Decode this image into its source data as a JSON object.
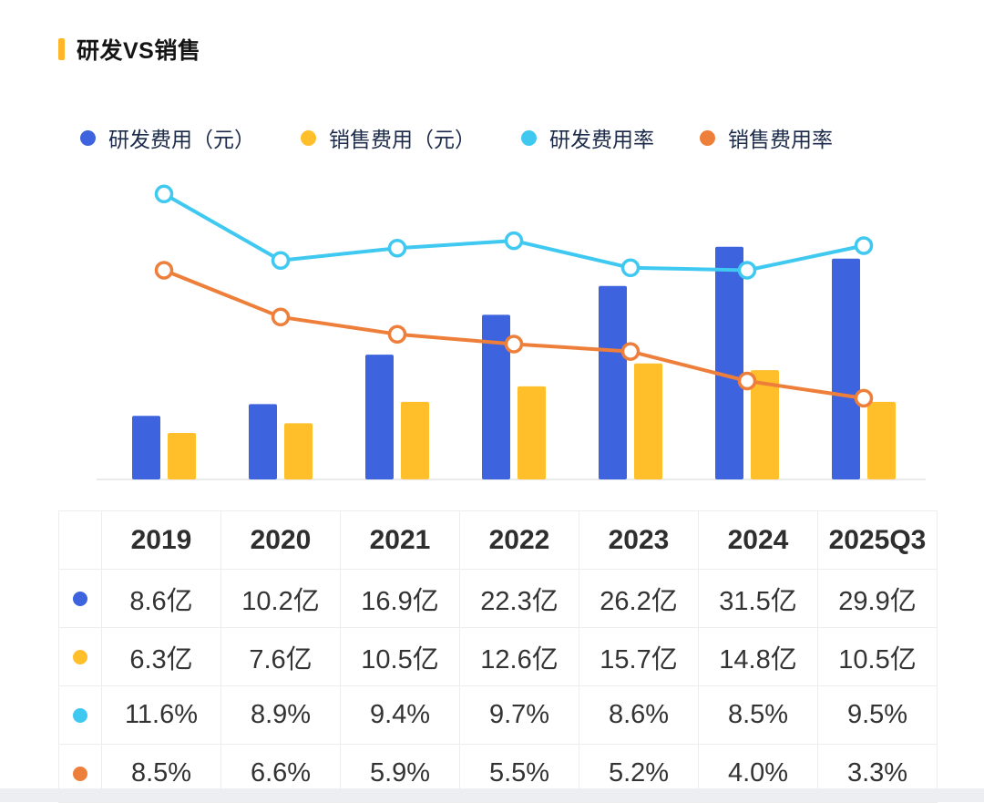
{
  "page": {
    "title": "研发VS销售",
    "accent_color": "#FFB629"
  },
  "legend": {
    "items": [
      {
        "id": "rd-expense",
        "label": "研发费用（元）",
        "color": "#3D63DE"
      },
      {
        "id": "sales-expense",
        "label": "销售费用（元）",
        "color": "#FFBF2B"
      },
      {
        "id": "rd-ratio",
        "label": "研发费用率",
        "color": "#3FC9F1"
      },
      {
        "id": "sales-ratio",
        "label": "销售费用率",
        "color": "#EE7F3B"
      }
    ]
  },
  "chart_data": {
    "type": "bar+line",
    "title": "研发VS销售",
    "categories": [
      "2019",
      "2020",
      "2021",
      "2022",
      "2023",
      "2024",
      "2025Q3"
    ],
    "bar_series": [
      {
        "id": "rd-expense",
        "name": "研发费用（元）",
        "unit": "亿",
        "color": "#3D63DE",
        "values": [
          8.6,
          10.2,
          16.9,
          22.3,
          26.2,
          31.5,
          29.9
        ]
      },
      {
        "id": "sales-expense",
        "name": "销售费用（元）",
        "unit": "亿",
        "color": "#FFBF2B",
        "values": [
          6.3,
          7.6,
          10.5,
          12.6,
          15.7,
          14.8,
          10.5
        ]
      }
    ],
    "line_series": [
      {
        "id": "sales-ratio",
        "name": "销售费用率",
        "unit": "%",
        "color": "#EE7F3B",
        "values": [
          8.5,
          6.6,
          5.9,
          5.5,
          5.2,
          4.0,
          3.3
        ]
      },
      {
        "id": "rd-ratio",
        "name": "研发费用率",
        "unit": "%",
        "color": "#3FC9F1",
        "values": [
          11.6,
          8.9,
          9.4,
          9.7,
          8.6,
          8.5,
          9.5
        ]
      }
    ],
    "bar_axis_max": 40,
    "line_axis_max": 12,
    "grid": false,
    "legend_position": "top"
  },
  "table": {
    "columns": [
      "2019",
      "2020",
      "2021",
      "2022",
      "2023",
      "2024",
      "2025Q3"
    ],
    "rows": [
      {
        "series": "研发费用（元）",
        "dot_color": "#3D63DE",
        "values": [
          "8.6亿",
          "10.2亿",
          "16.9亿",
          "22.3亿",
          "26.2亿",
          "31.5亿",
          "29.9亿"
        ]
      },
      {
        "series": "销售费用（元）",
        "dot_color": "#FFBF2B",
        "values": [
          "6.3亿",
          "7.6亿",
          "10.5亿",
          "12.6亿",
          "15.7亿",
          "14.8亿",
          "10.5亿"
        ]
      },
      {
        "series": "研发费用率",
        "dot_color": "#3FC9F1",
        "values": [
          "11.6%",
          "8.9%",
          "9.4%",
          "9.7%",
          "8.6%",
          "8.5%",
          "9.5%"
        ]
      },
      {
        "series": "销售费用率",
        "dot_color": "#EE7F3B",
        "values": [
          "8.5%",
          "6.6%",
          "5.9%",
          "5.5%",
          "5.2%",
          "4.0%",
          "3.3%"
        ]
      }
    ]
  }
}
